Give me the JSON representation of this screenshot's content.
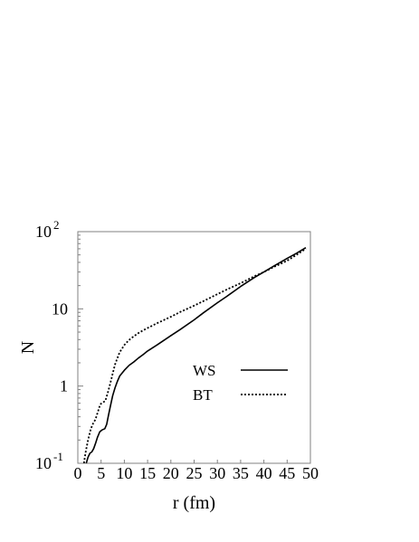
{
  "chart_data": {
    "type": "line",
    "xlabel": "r (fm)",
    "ylabel": "N",
    "xlim": [
      0,
      50
    ],
    "ylim": [
      0.1,
      100
    ],
    "yscale": "log",
    "grid": false,
    "legend_position": "right",
    "x_ticks": [
      "0",
      "5",
      "10",
      "15",
      "20",
      "25",
      "30",
      "35",
      "40",
      "45",
      "50"
    ],
    "y_ticks": [
      {
        "value": 0.1,
        "label": "10",
        "exponent": "-1"
      },
      {
        "value": 1,
        "label": "1",
        "exponent": ""
      },
      {
        "value": 10,
        "label": "10",
        "exponent": ""
      },
      {
        "value": 100,
        "label": "10",
        "exponent": "2"
      }
    ],
    "series": [
      {
        "name": "WS",
        "style": "solid",
        "color": "#000000",
        "points": [
          [
            1.8,
            0.1
          ],
          [
            2.2,
            0.12
          ],
          [
            2.6,
            0.135
          ],
          [
            3.0,
            0.14
          ],
          [
            3.4,
            0.155
          ],
          [
            3.8,
            0.18
          ],
          [
            4.2,
            0.215
          ],
          [
            4.7,
            0.255
          ],
          [
            5.2,
            0.27
          ],
          [
            5.8,
            0.28
          ],
          [
            6.2,
            0.32
          ],
          [
            6.6,
            0.42
          ],
          [
            7.0,
            0.55
          ],
          [
            7.5,
            0.75
          ],
          [
            8.0,
            0.95
          ],
          [
            8.5,
            1.15
          ],
          [
            9.0,
            1.35
          ],
          [
            10,
            1.6
          ],
          [
            11,
            1.85
          ],
          [
            12,
            2.05
          ],
          [
            13,
            2.3
          ],
          [
            14,
            2.55
          ],
          [
            15,
            2.85
          ],
          [
            17,
            3.4
          ],
          [
            20,
            4.5
          ],
          [
            22,
            5.4
          ],
          [
            25,
            7.2
          ],
          [
            27,
            8.9
          ],
          [
            30,
            12
          ],
          [
            32,
            14.5
          ],
          [
            35,
            19.5
          ],
          [
            38,
            25.5
          ],
          [
            40,
            30
          ],
          [
            42,
            35.5
          ],
          [
            45,
            45
          ],
          [
            47,
            52.5
          ],
          [
            49,
            62
          ]
        ]
      },
      {
        "name": "BT",
        "style": "dotted",
        "color": "#000000",
        "points": [
          [
            1.3,
            0.1
          ],
          [
            1.7,
            0.14
          ],
          [
            2.2,
            0.2
          ],
          [
            2.8,
            0.28
          ],
          [
            3.3,
            0.33
          ],
          [
            3.8,
            0.37
          ],
          [
            4.3,
            0.46
          ],
          [
            4.8,
            0.58
          ],
          [
            5.3,
            0.61
          ],
          [
            5.9,
            0.64
          ],
          [
            6.4,
            0.8
          ],
          [
            7.0,
            1.1
          ],
          [
            7.5,
            1.45
          ],
          [
            8.0,
            1.9
          ],
          [
            8.5,
            2.3
          ],
          [
            9.0,
            2.75
          ],
          [
            10,
            3.4
          ],
          [
            11,
            3.95
          ],
          [
            12,
            4.4
          ],
          [
            13,
            4.85
          ],
          [
            14,
            5.25
          ],
          [
            15,
            5.65
          ],
          [
            17,
            6.5
          ],
          [
            20,
            7.9
          ],
          [
            22,
            9.1
          ],
          [
            25,
            11
          ],
          [
            27,
            12.6
          ],
          [
            30,
            15.5
          ],
          [
            32,
            17.8
          ],
          [
            35,
            21.5
          ],
          [
            38,
            26.5
          ],
          [
            40,
            30
          ],
          [
            42,
            34.5
          ],
          [
            45,
            42
          ],
          [
            47,
            50
          ],
          [
            49,
            60
          ]
        ]
      }
    ]
  }
}
